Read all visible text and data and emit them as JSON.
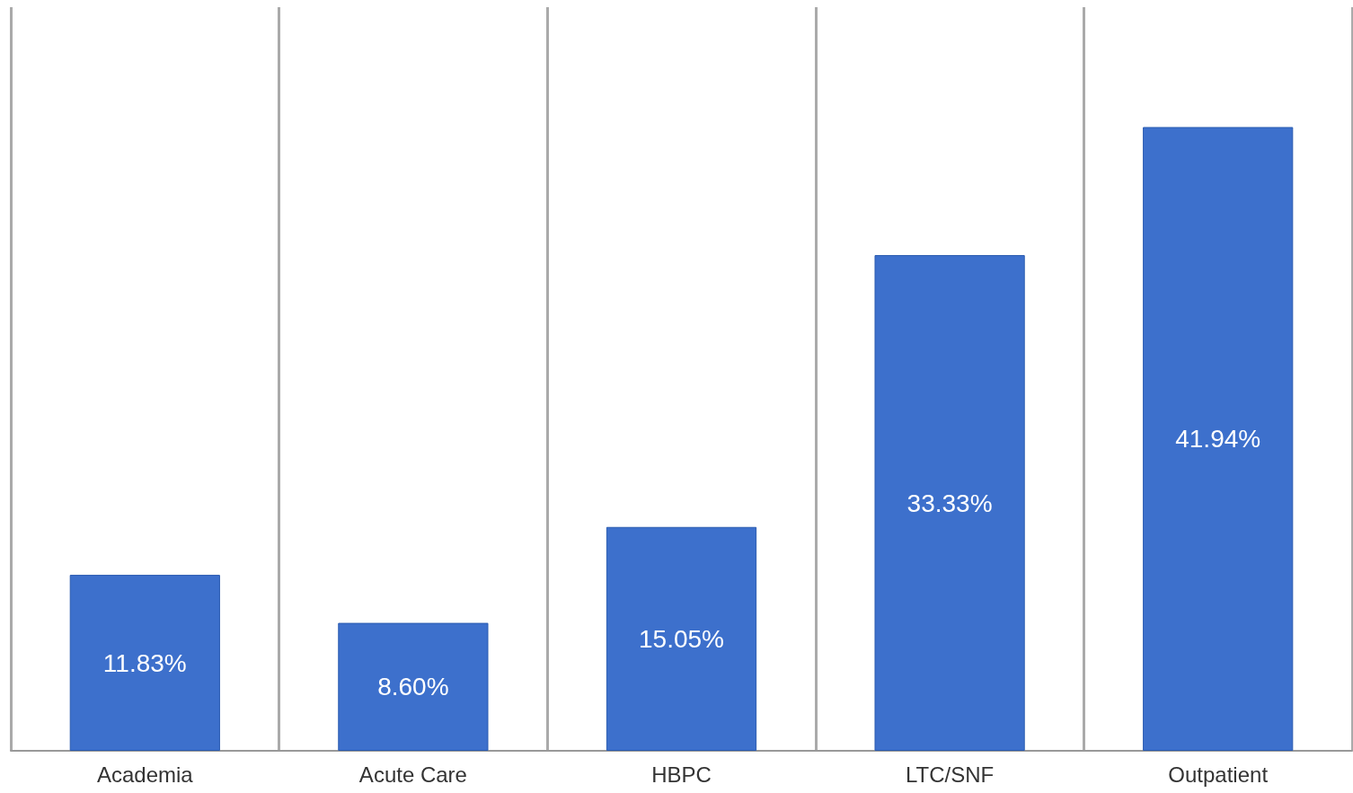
{
  "chart_data": {
    "type": "bar",
    "categories": [
      "Academia",
      "Acute Care",
      "HBPC",
      "LTC/SNF",
      "Outpatient"
    ],
    "values": [
      11.83,
      8.6,
      15.05,
      33.33,
      41.94
    ],
    "value_labels": [
      "11.83%",
      "8.60%",
      "15.05%",
      "33.33%",
      "41.94%"
    ],
    "color": "#3d70cc",
    "grid": "x"
  }
}
